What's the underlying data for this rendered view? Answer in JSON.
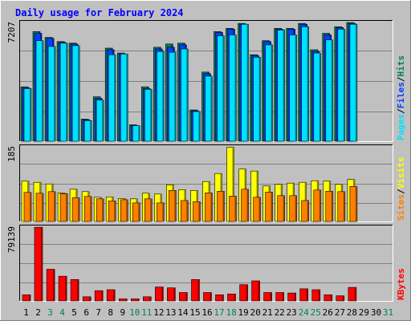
{
  "title": "Daily usage for February 2024",
  "colors": {
    "frame": "#c0c0c0",
    "plot_bg": "#c0c0c0",
    "gridline": "#808080",
    "hits": "#00805c",
    "files": "#0040ff",
    "pages": "#00e0ff",
    "visits": "#ffff00",
    "sites": "#ff8000",
    "kbytes": "#ff0000",
    "title_text": "#0000ff",
    "weekday_label": "#000000",
    "weekend_label": "#00805c"
  },
  "chart_data": [
    {
      "type": "bar",
      "panel": "hits-files-pages",
      "title": "Daily usage for February 2024",
      "max_label": "7207",
      "ylim": [
        0,
        7207
      ],
      "legend": [
        {
          "key": "pages",
          "label": "Pages"
        },
        {
          "key": "sep1",
          "label": "/"
        },
        {
          "key": "files",
          "label": "Files"
        },
        {
          "key": "sep2",
          "label": "/"
        },
        {
          "key": "hits",
          "label": "Hits"
        }
      ],
      "categories": [
        "1",
        "2",
        "3",
        "4",
        "5",
        "6",
        "7",
        "8",
        "9",
        "10",
        "11",
        "12",
        "13",
        "14",
        "15",
        "16",
        "17",
        "18",
        "19",
        "20",
        "21",
        "22",
        "23",
        "24",
        "25",
        "26",
        "27",
        "28",
        "29",
        "30",
        "31"
      ],
      "weekend_days": [
        "3",
        "4",
        "10",
        "11",
        "17",
        "18",
        "24",
        "25",
        "31"
      ],
      "series": [
        {
          "name": "Hits",
          "values": [
            3300,
            6650,
            6300,
            6050,
            5950,
            1350,
            2700,
            5650,
            5350,
            1000,
            3300,
            5700,
            5900,
            5950,
            1900,
            4200,
            6650,
            6850,
            7150,
            5250,
            6100,
            6850,
            6850,
            7150,
            5550,
            6550,
            6950,
            7200,
            0,
            0,
            0
          ]
        },
        {
          "name": "Files",
          "values": [
            3250,
            6550,
            6250,
            6000,
            5900,
            1300,
            2600,
            5550,
            5300,
            950,
            3200,
            5600,
            5700,
            5850,
            1850,
            4100,
            6600,
            6800,
            7100,
            5200,
            6050,
            6800,
            6800,
            7100,
            5450,
            6450,
            6900,
            7150,
            0,
            0,
            0
          ]
        },
        {
          "name": "Pages",
          "values": [
            3200,
            6100,
            5750,
            5950,
            5800,
            1250,
            2500,
            5250,
            5300,
            950,
            3150,
            5450,
            5400,
            5600,
            1800,
            3950,
            6400,
            6450,
            7100,
            5100,
            5850,
            6750,
            6450,
            6950,
            5350,
            6150,
            6800,
            7100,
            0,
            0,
            0
          ]
        }
      ]
    },
    {
      "type": "bar",
      "panel": "visits-sites",
      "max_label": "185",
      "ylim": [
        0,
        185
      ],
      "legend": [
        {
          "key": "sites",
          "label": "Sites"
        },
        {
          "key": "sep1",
          "label": "/"
        },
        {
          "key": "visits",
          "label": "Visits"
        }
      ],
      "categories": [
        "1",
        "2",
        "3",
        "4",
        "5",
        "6",
        "7",
        "8",
        "9",
        "10",
        "11",
        "12",
        "13",
        "14",
        "15",
        "16",
        "17",
        "18",
        "19",
        "20",
        "21",
        "22",
        "23",
        "24",
        "25",
        "26",
        "27",
        "28",
        "29",
        "30",
        "31"
      ],
      "series": [
        {
          "name": "Visits",
          "values": [
            100,
            97,
            93,
            71,
            80,
            74,
            60,
            61,
            57,
            56,
            70,
            68,
            91,
            79,
            77,
            99,
            119,
            184,
            130,
            125,
            88,
            92,
            95,
            97,
            101,
            100,
            92,
            104,
            0,
            0,
            0
          ]
        },
        {
          "name": "Sites",
          "values": [
            72,
            70,
            74,
            69,
            59,
            62,
            56,
            51,
            54,
            46,
            56,
            46,
            77,
            52,
            49,
            71,
            75,
            63,
            80,
            60,
            73,
            64,
            64,
            52,
            78,
            75,
            74,
            87,
            0,
            0,
            0
          ]
        }
      ]
    },
    {
      "type": "bar",
      "panel": "kbytes",
      "max_label": "79139",
      "ylim": [
        0,
        79139
      ],
      "legend": [
        {
          "key": "kbytes",
          "label": "KBytes"
        }
      ],
      "categories": [
        "1",
        "2",
        "3",
        "4",
        "5",
        "6",
        "7",
        "8",
        "9",
        "10",
        "11",
        "12",
        "13",
        "14",
        "15",
        "16",
        "17",
        "18",
        "19",
        "20",
        "21",
        "22",
        "23",
        "24",
        "25",
        "26",
        "27",
        "28",
        "29",
        "30",
        "31"
      ],
      "series": [
        {
          "name": "KBytes",
          "values": [
            6600,
            79000,
            34000,
            26500,
            23000,
            4500,
            11000,
            12000,
            2200,
            2200,
            4500,
            15000,
            14000,
            9000,
            23000,
            9000,
            6600,
            7500,
            17500,
            21500,
            9000,
            9000,
            8500,
            13000,
            12000,
            6600,
            5500,
            14500,
            0,
            0,
            0
          ]
        }
      ]
    }
  ]
}
